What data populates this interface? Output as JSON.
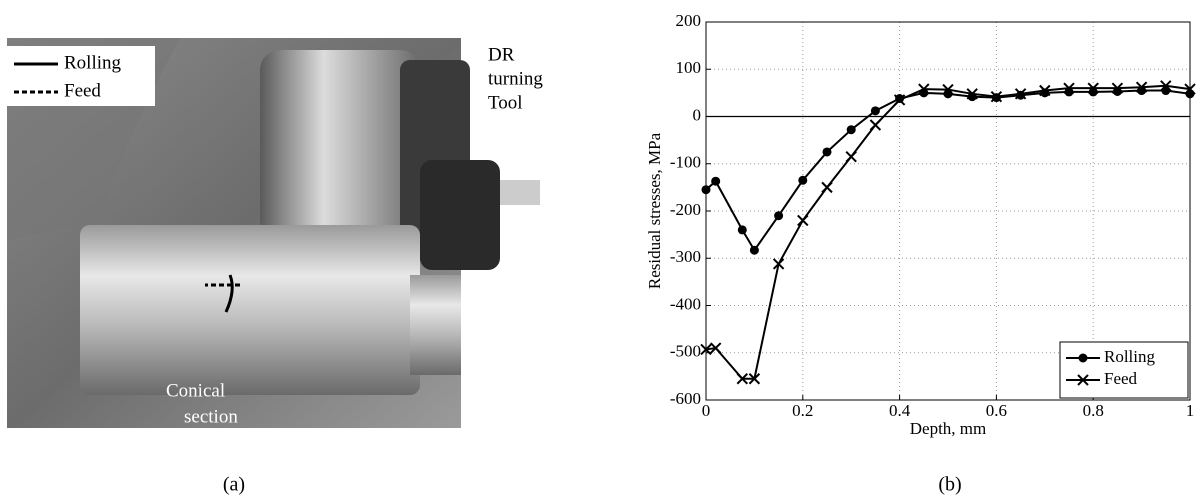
{
  "chart_data": {
    "type": "line",
    "xlabel": "Depth, mm",
    "ylabel": "Residual stresses, MPa",
    "x": [
      0,
      0.02,
      0.075,
      0.1,
      0.15,
      0.2,
      0.25,
      0.3,
      0.35,
      0.4,
      0.45,
      0.5,
      0.55,
      0.6,
      0.65,
      0.7,
      0.75,
      0.8,
      0.85,
      0.9,
      0.95,
      1.0
    ],
    "series": [
      {
        "name": "Rolling",
        "color": "#000000",
        "marker": "circle",
        "values": [
          -155,
          -137,
          -240,
          -283,
          -210,
          -135,
          -75,
          -28,
          12,
          38,
          50,
          48,
          42,
          40,
          45,
          50,
          52,
          52,
          53,
          55,
          55,
          48
        ]
      },
      {
        "name": "Feed",
        "color": "#000000",
        "marker": "x",
        "values": [
          -493,
          -490,
          -555,
          -555,
          -312,
          -220,
          -150,
          -85,
          -18,
          35,
          58,
          57,
          48,
          42,
          48,
          55,
          60,
          60,
          60,
          62,
          65,
          58
        ]
      }
    ],
    "xlim": [
      0,
      1
    ],
    "xticks": [
      0,
      0.2,
      0.4,
      0.6,
      0.8,
      1
    ],
    "ylim": [
      -600,
      200
    ],
    "yticks": [
      -600,
      -500,
      -400,
      -300,
      -200,
      -100,
      0,
      100,
      200
    ],
    "grid": true,
    "legend": "lower right"
  },
  "photo": {
    "legend": [
      "Rolling",
      "Feed"
    ],
    "tool_label": [
      "DR",
      "turning",
      "Tool"
    ],
    "section_label": [
      "Conical",
      "section"
    ]
  },
  "captions": [
    "(a)",
    "(b)"
  ]
}
